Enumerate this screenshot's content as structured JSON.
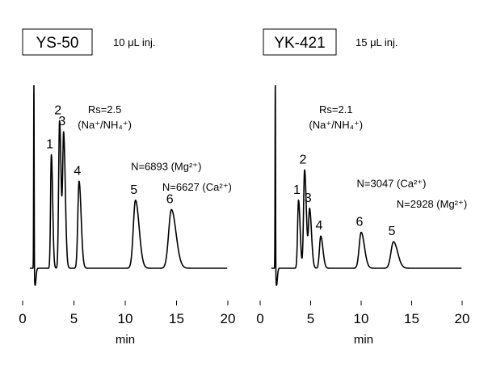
{
  "chart_data": [
    {
      "type": "line",
      "column": "YS-50",
      "injection": "10 μL inj.",
      "xlabel": "min",
      "xlim": [
        0,
        20
      ],
      "xticks": [
        0,
        5,
        10,
        15,
        20
      ],
      "ylim": [
        -0.09,
        1.0
      ],
      "baseline": 0,
      "system_peak": {
        "t": 1.1,
        "height": 1.0,
        "dip": -0.09
      },
      "peaks": [
        {
          "label": "1",
          "t": 2.8,
          "height": 0.6
        },
        {
          "label": "2",
          "t": 3.6,
          "height": 0.78
        },
        {
          "label": "3",
          "t": 4.0,
          "height": 0.7
        },
        {
          "label": "4",
          "t": 5.5,
          "height": 0.46
        },
        {
          "label": "5",
          "t": 11.0,
          "height": 0.36
        },
        {
          "label": "6",
          "t": 14.5,
          "height": 0.31
        }
      ],
      "annotations": [
        {
          "text": "Rs=2.5",
          "t": 8.0,
          "y": 0.82
        },
        {
          "text": "(Na⁺/NH₄⁺)",
          "t": 8.0,
          "y": 0.74
        },
        {
          "text": "N=6893 (Mg²⁺)",
          "t": 14.0,
          "y": 0.52
        },
        {
          "text": "N=6627 (Ca²⁺)",
          "t": 17.0,
          "y": 0.41
        }
      ]
    },
    {
      "type": "line",
      "column": "YK-421",
      "injection": "15 μL inj.",
      "xlabel": "min",
      "xlim": [
        0,
        20
      ],
      "xticks": [
        0,
        5,
        10,
        15,
        20
      ],
      "ylim": [
        -0.09,
        1.0
      ],
      "baseline": 0,
      "system_peak": {
        "t": 1.5,
        "height": 1.0,
        "dip": -0.09
      },
      "peaks": [
        {
          "label": "1",
          "t": 3.8,
          "height": 0.36
        },
        {
          "label": "2",
          "t": 4.4,
          "height": 0.52
        },
        {
          "label": "3",
          "t": 4.9,
          "height": 0.31
        },
        {
          "label": "4",
          "t": 6.0,
          "height": 0.17
        },
        {
          "label": "6",
          "t": 10.0,
          "height": 0.19
        },
        {
          "label": "5",
          "t": 13.2,
          "height": 0.14
        }
      ],
      "annotations": [
        {
          "text": "Rs=2.1",
          "t": 7.5,
          "y": 0.82
        },
        {
          "text": "(Na⁺/NH₄⁺)",
          "t": 7.5,
          "y": 0.74
        },
        {
          "text": "N=3047 (Ca²⁺)",
          "t": 13.0,
          "y": 0.43
        },
        {
          "text": "N=2928 (Mg²⁺)",
          "t": 17.0,
          "y": 0.32
        }
      ]
    }
  ]
}
